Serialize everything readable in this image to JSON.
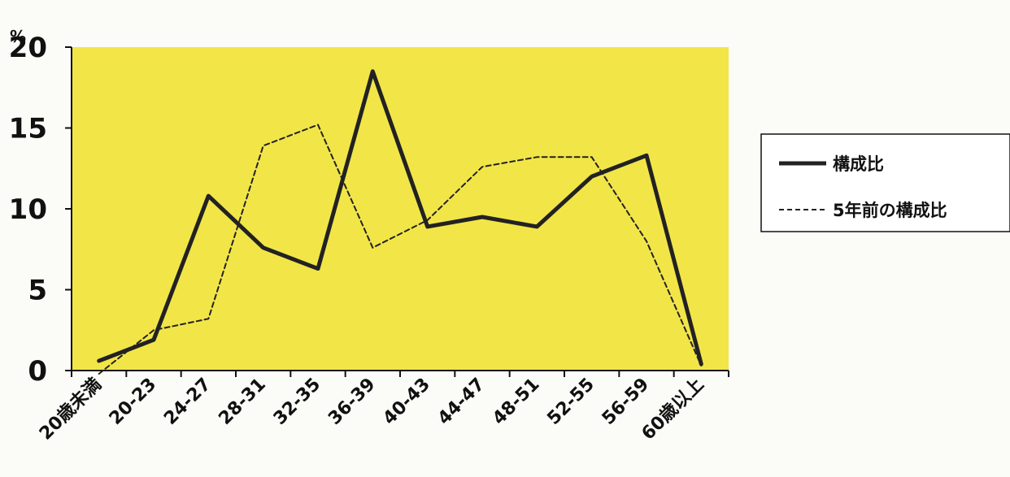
{
  "chart_data": {
    "type": "line",
    "ylabel": "%",
    "ylim": [
      0,
      20
    ],
    "yticks": [
      0,
      5,
      10,
      15,
      20
    ],
    "categories": [
      "20歳未満",
      "20-23",
      "24-27",
      "28-31",
      "32-35",
      "36-39",
      "40-43",
      "44-47",
      "48-51",
      "52-55",
      "56-59",
      "60歳以上"
    ],
    "series": [
      {
        "name": "構成比",
        "style": "solid",
        "values": [
          0.6,
          1.9,
          10.8,
          7.6,
          6.3,
          18.5,
          8.9,
          9.5,
          8.9,
          12.0,
          13.3,
          0.4
        ]
      },
      {
        "name": "5年前の構成比",
        "style": "dashed",
        "values": [
          -0.2,
          2.5,
          3.2,
          13.9,
          15.2,
          7.6,
          9.3,
          12.6,
          13.2,
          13.2,
          8.0,
          0.3
        ]
      }
    ],
    "legend_position": "right",
    "colors": {
      "plot_background": "#f2e548",
      "line": "#222222",
      "axis": "#111111"
    }
  }
}
